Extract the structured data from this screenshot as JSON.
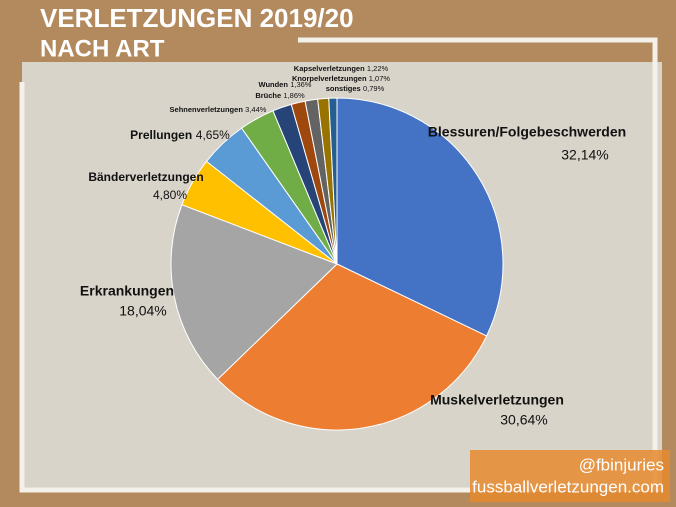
{
  "chart_data": {
    "type": "pie",
    "title": "VERLETZUNGEN 2019/20",
    "subtitle": "NACH ART",
    "categories": [
      "Blessuren/Folgebeschwerden",
      "Muskelverletzungen",
      "Erkrankungen",
      "Bänderverletzungen",
      "Prellungen",
      "Sehnenverletzungen",
      "Brüche",
      "Wunden",
      "Kapselverletzungen",
      "Knorpelverletzungen",
      "sonstiges"
    ],
    "values": [
      32.14,
      30.64,
      18.04,
      4.8,
      4.65,
      3.44,
      1.86,
      1.36,
      1.22,
      1.07,
      0.79
    ],
    "value_labels": [
      "32,14%",
      "30,64%",
      "18,04%",
      "4,80%",
      "4,65%",
      "3,44%",
      "1,86%",
      "1,36%",
      "1,22%",
      "1,07%",
      "0,79%"
    ],
    "colors": [
      "#4472c4",
      "#ed7d31",
      "#a5a5a5",
      "#ffc000",
      "#5b9bd5",
      "#70ad47",
      "#264478",
      "#9e480e",
      "#636363",
      "#997300",
      "#255e91"
    ]
  },
  "credits": {
    "twitter": "@fbinjuries",
    "website": "fussballverletzungen.com"
  }
}
